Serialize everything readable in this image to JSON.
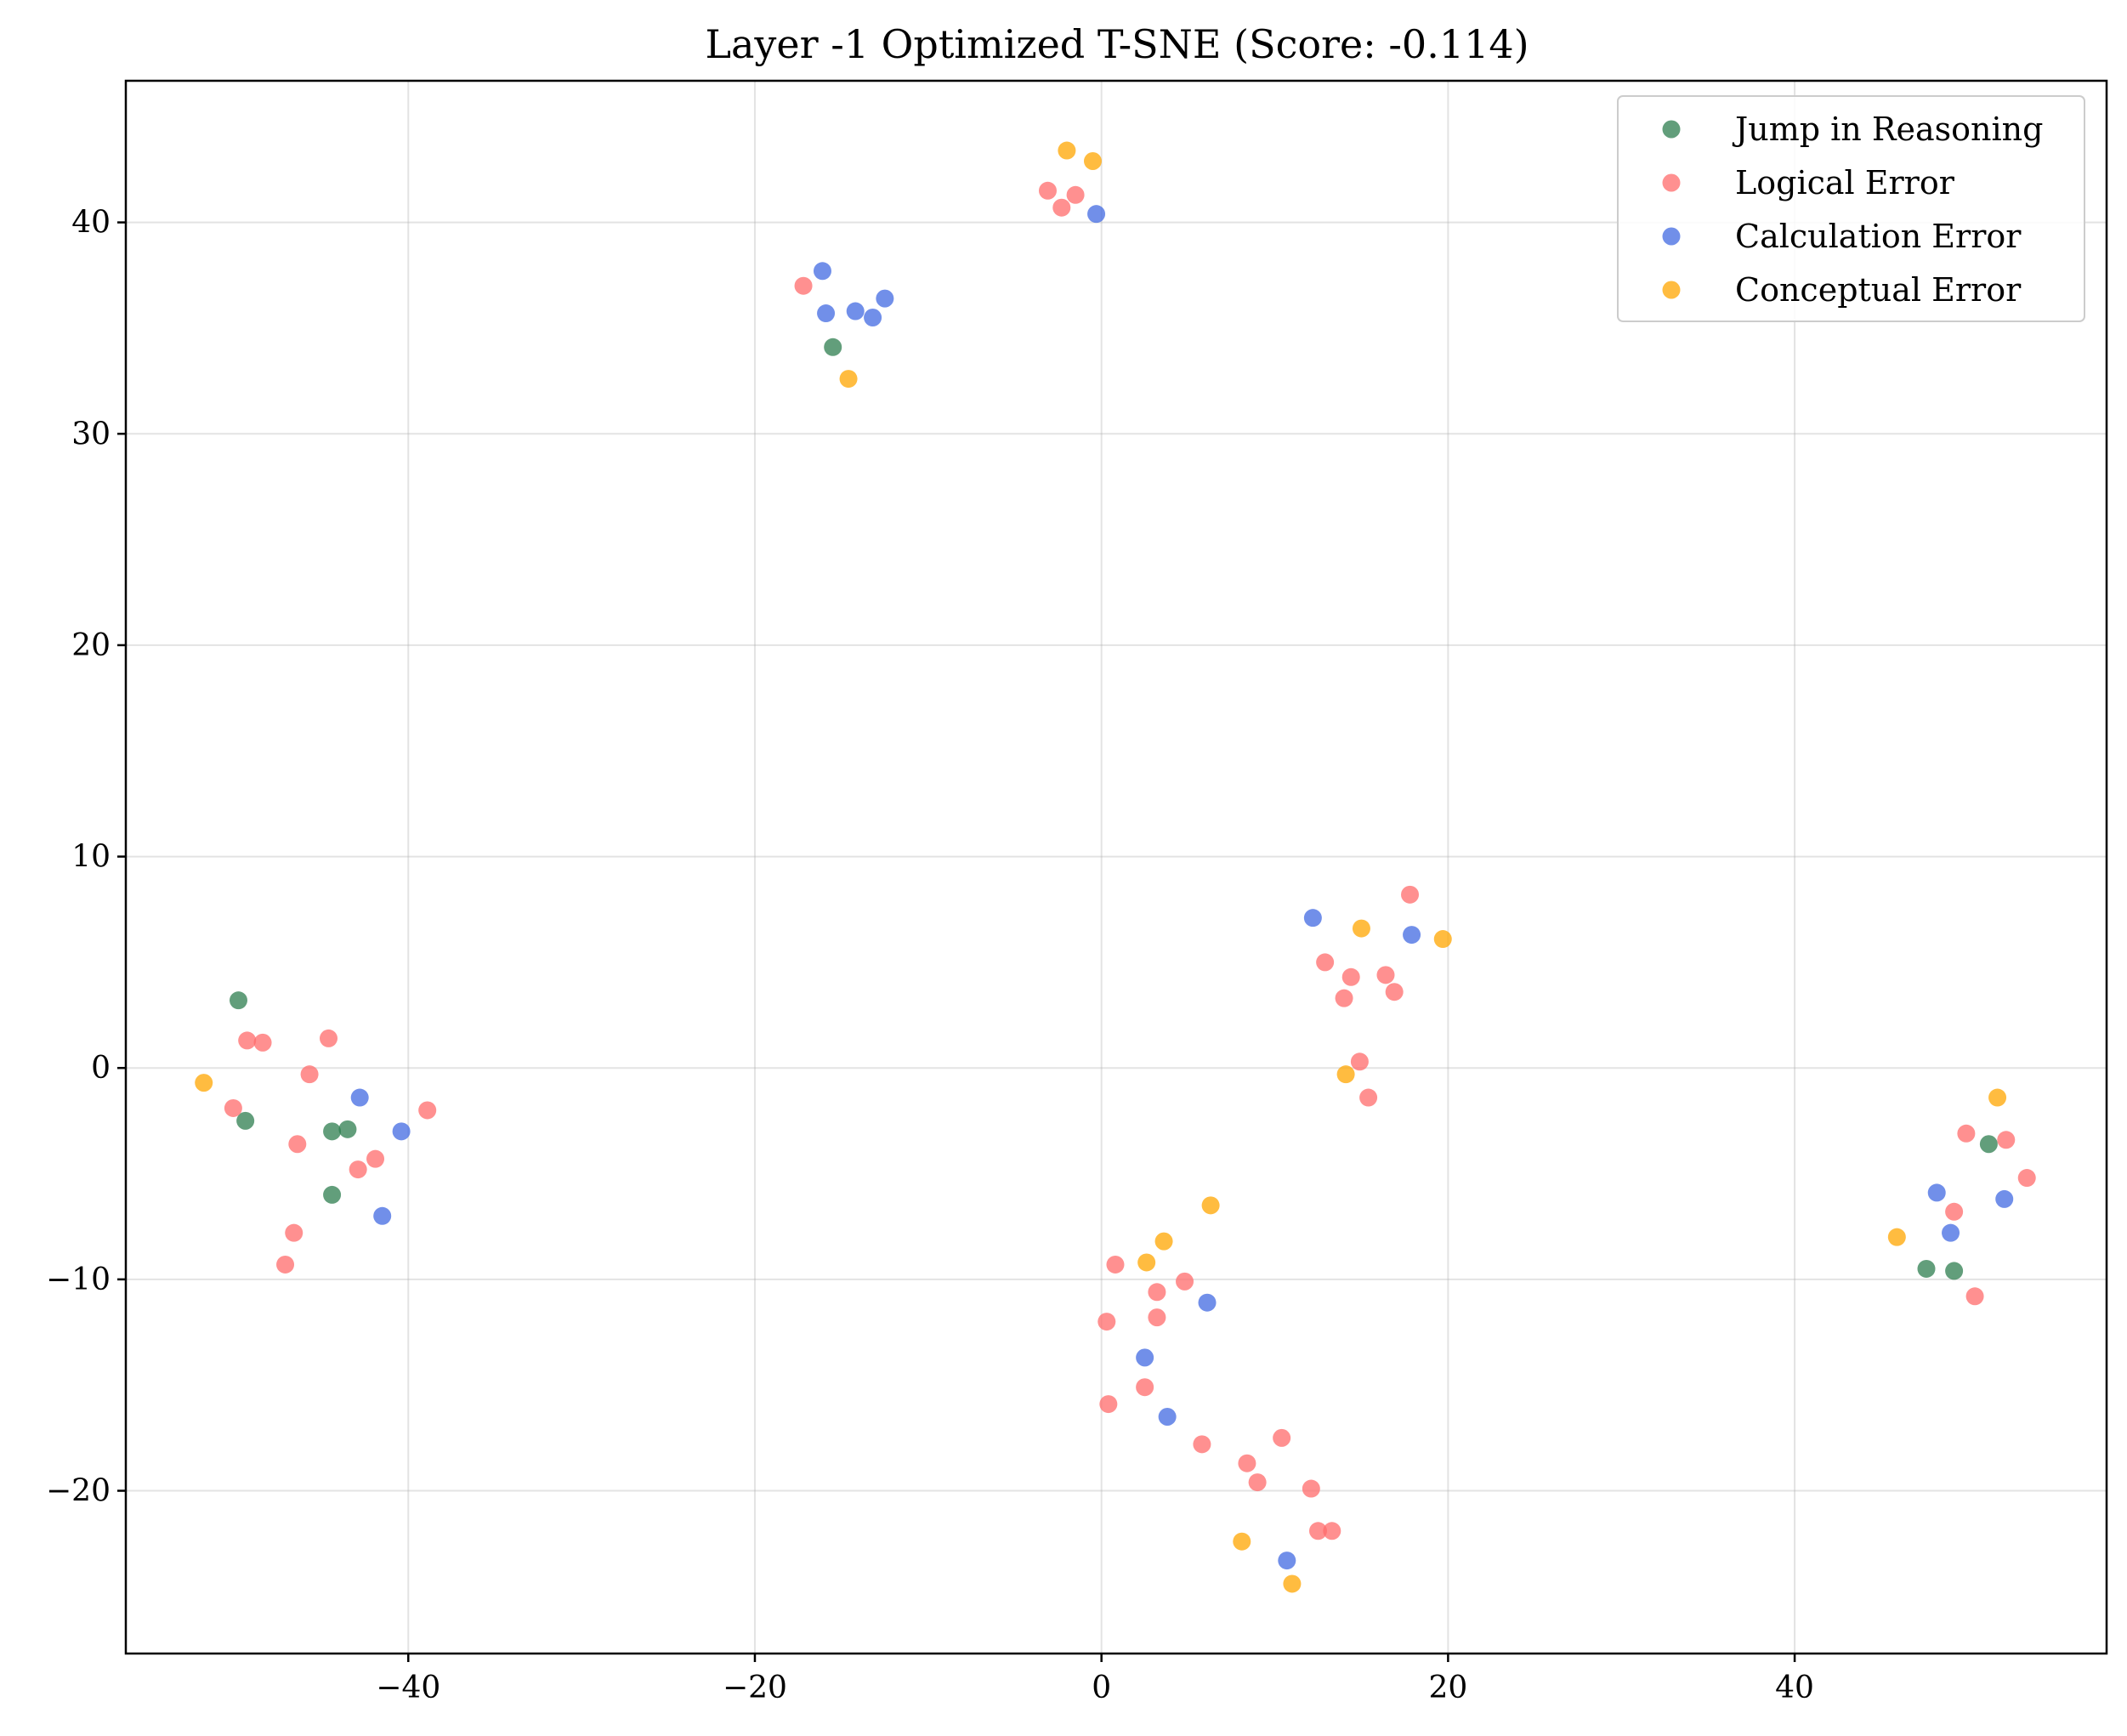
{
  "chart_data": {
    "type": "scatter",
    "title": "Layer -1 Optimized T-SNE (Score: -0.114)",
    "xlabel": "",
    "ylabel": "",
    "xlim": [
      -56.3,
      58
    ],
    "ylim": [
      -27.7,
      46.7
    ],
    "xticks": [
      -40,
      -20,
      0,
      20,
      40
    ],
    "yticks": [
      -20,
      -10,
      0,
      10,
      20,
      30,
      40
    ],
    "xtick_labels": [
      "−40",
      "−20",
      "0",
      "20",
      "40"
    ],
    "ytick_labels": [
      "−20",
      "−10",
      "0",
      "10",
      "20",
      "30",
      "40"
    ],
    "grid": true,
    "legend_position": "top-right",
    "series": [
      {
        "name": "Jump in Reasoning",
        "color": "#2e7d4f",
        "points": [
          [
            -49.8,
            3.2
          ],
          [
            -49.4,
            -2.5
          ],
          [
            -44.4,
            -3.0
          ],
          [
            -43.5,
            -2.9
          ],
          [
            -44.4,
            -6.0
          ],
          [
            -15.5,
            34.1
          ],
          [
            51.2,
            -3.6
          ],
          [
            47.6,
            -9.5
          ],
          [
            49.2,
            -9.6
          ]
        ]
      },
      {
        "name": "Logical Error",
        "color": "#ff6b6b",
        "points": [
          [
            -49.3,
            1.3
          ],
          [
            -48.4,
            1.2
          ],
          [
            -44.6,
            1.4
          ],
          [
            -45.7,
            -0.3
          ],
          [
            -50.1,
            -1.9
          ],
          [
            -46.4,
            -3.6
          ],
          [
            -42.9,
            -4.8
          ],
          [
            -41.9,
            -4.3
          ],
          [
            -38.9,
            -2.0
          ],
          [
            -46.6,
            -7.8
          ],
          [
            -47.1,
            -9.3
          ],
          [
            -17.2,
            37.0
          ],
          [
            -3.1,
            41.5
          ],
          [
            -2.3,
            40.7
          ],
          [
            -1.5,
            41.3
          ],
          [
            12.9,
            5.0
          ],
          [
            14.4,
            4.3
          ],
          [
            16.4,
            4.4
          ],
          [
            16.9,
            3.6
          ],
          [
            14.0,
            3.3
          ],
          [
            17.8,
            8.2
          ],
          [
            14.9,
            0.3
          ],
          [
            15.4,
            -1.4
          ],
          [
            0.8,
            -9.3
          ],
          [
            3.2,
            -10.6
          ],
          [
            4.8,
            -10.1
          ],
          [
            3.2,
            -11.8
          ],
          [
            0.3,
            -12.0
          ],
          [
            2.5,
            -15.1
          ],
          [
            0.4,
            -15.9
          ],
          [
            5.8,
            -17.8
          ],
          [
            8.4,
            -18.7
          ],
          [
            10.4,
            -17.5
          ],
          [
            9.0,
            -19.6
          ],
          [
            12.1,
            -19.9
          ],
          [
            12.5,
            -21.9
          ],
          [
            13.3,
            -21.9
          ],
          [
            49.9,
            -3.1
          ],
          [
            52.2,
            -3.4
          ],
          [
            53.4,
            -5.2
          ],
          [
            49.2,
            -6.8
          ],
          [
            50.4,
            -10.8
          ]
        ]
      },
      {
        "name": "Calculation Error",
        "color": "#4169e1",
        "points": [
          [
            -42.8,
            -1.4
          ],
          [
            -40.4,
            -3.0
          ],
          [
            -41.5,
            -7.0
          ],
          [
            -16.1,
            37.7
          ],
          [
            -15.9,
            35.7
          ],
          [
            -14.2,
            35.8
          ],
          [
            -13.2,
            35.5
          ],
          [
            -12.5,
            36.4
          ],
          [
            -0.3,
            40.4
          ],
          [
            12.2,
            7.1
          ],
          [
            17.9,
            6.3
          ],
          [
            2.5,
            -13.7
          ],
          [
            3.8,
            -16.5
          ],
          [
            6.1,
            -11.1
          ],
          [
            10.7,
            -23.3
          ],
          [
            48.2,
            -5.9
          ],
          [
            49.0,
            -7.8
          ],
          [
            52.1,
            -6.2
          ]
        ]
      },
      {
        "name": "Conceptual Error",
        "color": "#ffa500",
        "points": [
          [
            -51.8,
            -0.7
          ],
          [
            -14.6,
            32.6
          ],
          [
            -2.0,
            43.4
          ],
          [
            -0.5,
            42.9
          ],
          [
            15.0,
            6.6
          ],
          [
            19.7,
            6.1
          ],
          [
            14.1,
            -0.3
          ],
          [
            6.3,
            -6.5
          ],
          [
            3.6,
            -8.2
          ],
          [
            2.6,
            -9.2
          ],
          [
            8.1,
            -22.4
          ],
          [
            11.0,
            -24.4
          ],
          [
            45.9,
            -8.0
          ],
          [
            51.7,
            -1.4
          ]
        ]
      }
    ]
  }
}
